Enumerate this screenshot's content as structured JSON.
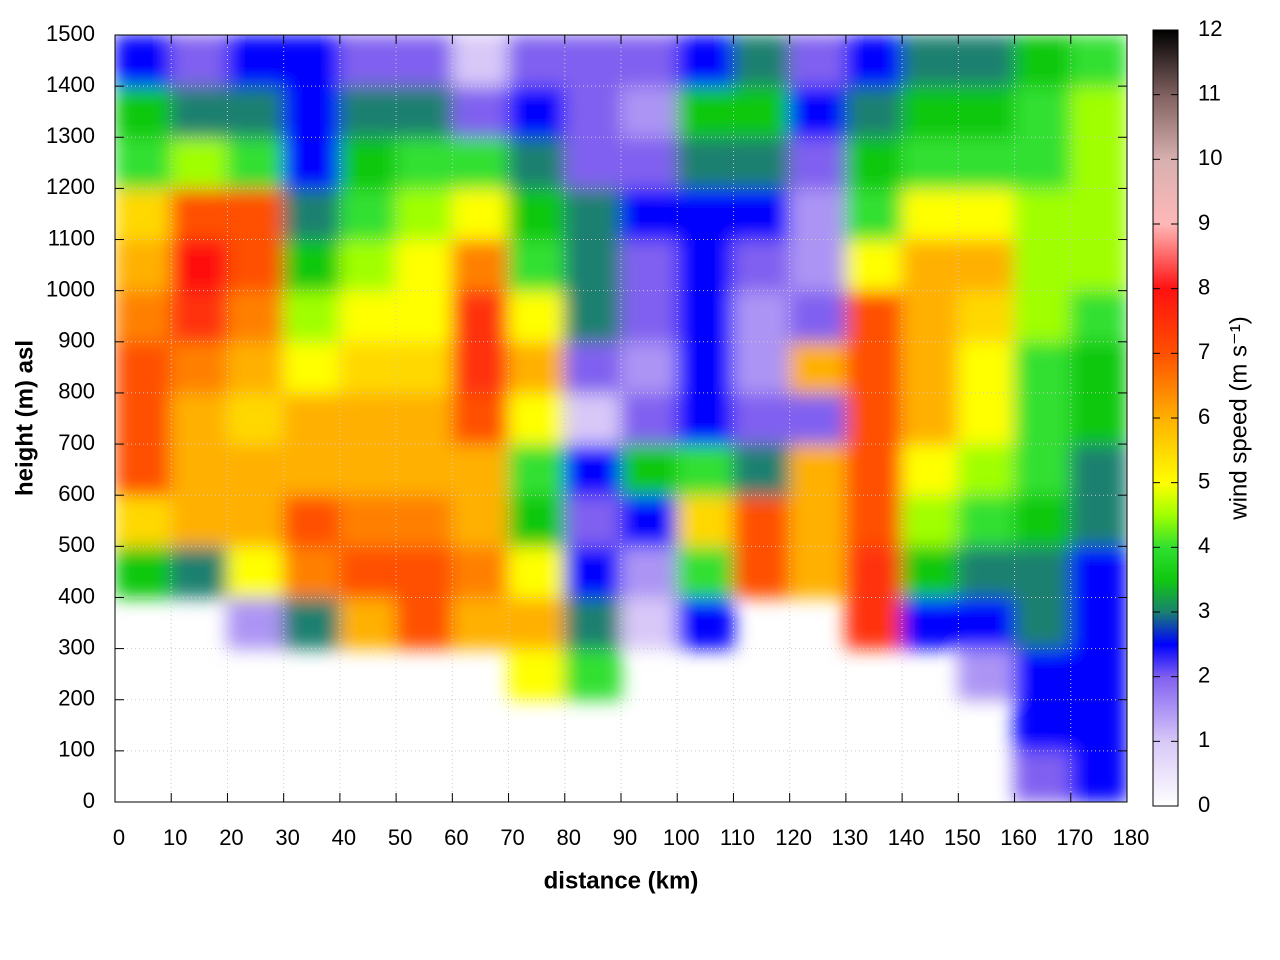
{
  "chart_data": {
    "type": "heatmap",
    "xlabel": "distance (km)",
    "ylabel": "height (m) asl",
    "colorbar_label": "wind speed (m s⁻¹)",
    "x": [
      5,
      15,
      25,
      35,
      45,
      55,
      65,
      75,
      85,
      95,
      105,
      115,
      125,
      135,
      145,
      155,
      165,
      175
    ],
    "y": [
      50,
      150,
      250,
      350,
      450,
      550,
      650,
      750,
      850,
      950,
      1050,
      1150,
      1250,
      1350,
      1450
    ],
    "z": [
      [
        null,
        null,
        null,
        null,
        null,
        null,
        null,
        null,
        null,
        null,
        null,
        null,
        null,
        null,
        null,
        null,
        2,
        2.5
      ],
      [
        null,
        null,
        null,
        null,
        null,
        null,
        null,
        null,
        null,
        null,
        null,
        null,
        null,
        null,
        null,
        null,
        2.5,
        2.5
      ],
      [
        null,
        null,
        null,
        null,
        null,
        null,
        null,
        5,
        4,
        null,
        null,
        null,
        null,
        null,
        null,
        1.5,
        2.5,
        2.5
      ],
      [
        null,
        null,
        1.5,
        3,
        6,
        7,
        6,
        6,
        3,
        1,
        2.5,
        null,
        null,
        7.5,
        2.5,
        2.5,
        3,
        2.5
      ],
      [
        3.5,
        3,
        5,
        6.5,
        7,
        7,
        6.5,
        5,
        2.5,
        1.5,
        4,
        7,
        6,
        7.5,
        3.5,
        3,
        3,
        2.5
      ],
      [
        5.5,
        6,
        6,
        7,
        6.5,
        6.5,
        6,
        3.5,
        2,
        2.5,
        5.5,
        7,
        6,
        7,
        4.5,
        4,
        3.5,
        3
      ],
      [
        7,
        6,
        6,
        6,
        6,
        6,
        6,
        4,
        2.5,
        3.5,
        4,
        3,
        6,
        7,
        5,
        4.5,
        4,
        3
      ],
      [
        7,
        6,
        5.5,
        6,
        6,
        6,
        7,
        5,
        1,
        2,
        2.5,
        2,
        2,
        7,
        6,
        5,
        4,
        3.5
      ],
      [
        7,
        6.5,
        6,
        5,
        5.5,
        5.5,
        7.5,
        6,
        2,
        1.5,
        2.5,
        1.5,
        6,
        7,
        6,
        5,
        4,
        3.5
      ],
      [
        6.5,
        7.5,
        6.5,
        4.5,
        5,
        5,
        7.5,
        5,
        3,
        2,
        2.5,
        1.5,
        2,
        7,
        6,
        5.5,
        4.5,
        4
      ],
      [
        6,
        8,
        7,
        3.5,
        4.5,
        5,
        6.5,
        4,
        3,
        2,
        2.5,
        2,
        1.5,
        5,
        6,
        6,
        4.5,
        4.5
      ],
      [
        5.5,
        7,
        7,
        3,
        4,
        4.5,
        5,
        3.5,
        3,
        2.5,
        2.5,
        2.5,
        1.5,
        4,
        5,
        5,
        4.5,
        4.5
      ],
      [
        4,
        4.5,
        4,
        2.5,
        3.5,
        4,
        4,
        3,
        2,
        2,
        3,
        3,
        2,
        3.5,
        4,
        4,
        4,
        4.5
      ],
      [
        3.5,
        3,
        3,
        2.5,
        3,
        3,
        2,
        2.5,
        2,
        1.5,
        3.5,
        3.5,
        2.5,
        3,
        3.5,
        3.5,
        4,
        4.5
      ],
      [
        2.5,
        2,
        2.5,
        2.5,
        2,
        2,
        1,
        2,
        2,
        2,
        2.5,
        3,
        2,
        2.5,
        3,
        3,
        3.5,
        4
      ]
    ],
    "xlim": [
      0,
      180
    ],
    "xticks": [
      0,
      10,
      20,
      30,
      40,
      50,
      60,
      70,
      80,
      90,
      100,
      110,
      120,
      130,
      140,
      150,
      160,
      170,
      180
    ],
    "ylim": [
      0,
      1500
    ],
    "yticks": [
      0,
      100,
      200,
      300,
      400,
      500,
      600,
      700,
      800,
      900,
      1000,
      1100,
      1200,
      1300,
      1400,
      1500
    ],
    "clim": [
      0,
      12
    ],
    "cticks": [
      0,
      1,
      2,
      3,
      4,
      5,
      6,
      7,
      8,
      9,
      10,
      11,
      12
    ],
    "colorscale": [
      [
        0,
        "#ffffff"
      ],
      [
        1,
        "#d8c8f8"
      ],
      [
        2,
        "#8060f0"
      ],
      [
        2.5,
        "#0000ff"
      ],
      [
        3,
        "#1a8070"
      ],
      [
        3.5,
        "#10c810"
      ],
      [
        4,
        "#30e030"
      ],
      [
        4.5,
        "#a0ff00"
      ],
      [
        5,
        "#ffff00"
      ],
      [
        6,
        "#ffb000"
      ],
      [
        7,
        "#ff5000"
      ],
      [
        8,
        "#ff1010"
      ],
      [
        9,
        "#ffb8b8"
      ],
      [
        10,
        "#d8b0b0"
      ],
      [
        11,
        "#806060"
      ],
      [
        12,
        "#000000"
      ]
    ],
    "grid": true
  }
}
